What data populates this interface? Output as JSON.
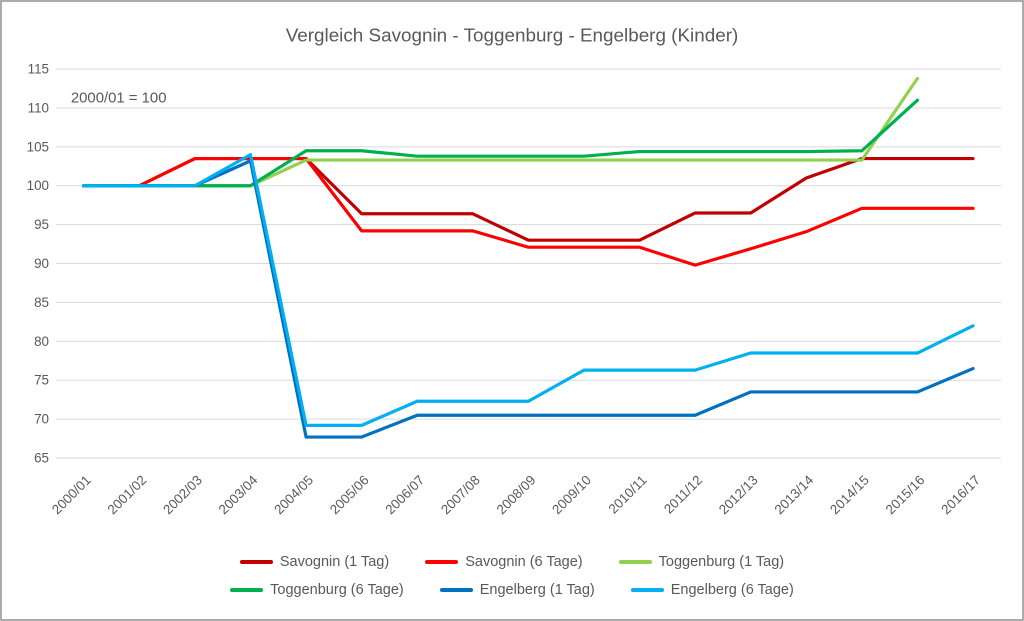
{
  "window": {
    "background": "#FFFFFF",
    "border_color": "#ABABAB"
  },
  "colors": {
    "text": "#595959",
    "grid": "#D9D9D9"
  },
  "chart_data": {
    "type": "line",
    "title": "Vergleich Savognin - Toggenburg  - Engelberg (Kinder)",
    "annotation": "2000/01 = 100",
    "xlabel": "",
    "ylabel": "",
    "ylim": [
      65,
      115
    ],
    "ytick_step": 5,
    "grid": true,
    "legend_position": "bottom",
    "categories": [
      "2000/01",
      "2001/02",
      "2002/03",
      "2003/04",
      "2004/05",
      "2005/06",
      "2006/07",
      "2007/08",
      "2008/09",
      "2009/10",
      "2010/11",
      "2011/12",
      "2012/13",
      "2013/14",
      "2014/15",
      "2015/16",
      "2016/17"
    ],
    "series": [
      {
        "name": "Savognin (1 Tag)",
        "color": "#C00000",
        "values": [
          100,
          100,
          103.5,
          103.5,
          103.5,
          96.4,
          96.4,
          96.4,
          93,
          93,
          93,
          96.5,
          96.5,
          101,
          103.5,
          103.5,
          103.5
        ]
      },
      {
        "name": "Savognin (6 Tage)",
        "color": "#FF0000",
        "values": [
          100,
          100,
          103.5,
          103.5,
          103.5,
          94.2,
          94.2,
          94.2,
          92.1,
          92.1,
          92.1,
          89.8,
          91.9,
          94.1,
          97.1,
          97.1,
          97.1
        ]
      },
      {
        "name": "Toggenburg (1 Tag)",
        "color": "#92D050",
        "values": [
          100,
          100,
          100,
          100,
          103.3,
          103.3,
          103.3,
          103.3,
          103.3,
          103.3,
          103.3,
          103.3,
          103.3,
          103.3,
          103.3,
          113.8,
          null
        ]
      },
      {
        "name": "Toggenburg (6 Tage)",
        "color": "#00B050",
        "values": [
          100,
          100,
          100,
          100,
          104.5,
          104.5,
          103.8,
          103.8,
          103.8,
          103.8,
          104.4,
          104.4,
          104.4,
          104.4,
          104.5,
          111,
          null
        ]
      },
      {
        "name": "Engelberg (1 Tag)",
        "color": "#0070C0",
        "values": [
          100,
          100,
          100,
          103.2,
          67.7,
          67.7,
          70.5,
          70.5,
          70.5,
          70.5,
          70.5,
          70.5,
          73.5,
          73.5,
          73.5,
          73.5,
          76.5
        ]
      },
      {
        "name": "Engelberg (6 Tage)",
        "color": "#00B0F0",
        "values": [
          100,
          100,
          100,
          104,
          69.2,
          69.2,
          72.3,
          72.3,
          72.3,
          76.3,
          76.3,
          76.3,
          78.5,
          78.5,
          78.5,
          78.5,
          82
        ]
      }
    ],
    "legend_rows": [
      [
        "Savognin (1 Tag)",
        "Savognin (6 Tage)",
        "Toggenburg (1 Tag)"
      ],
      [
        "Toggenburg (6 Tage)",
        "Engelberg (1 Tag)",
        "Engelberg (6 Tage)"
      ]
    ]
  }
}
